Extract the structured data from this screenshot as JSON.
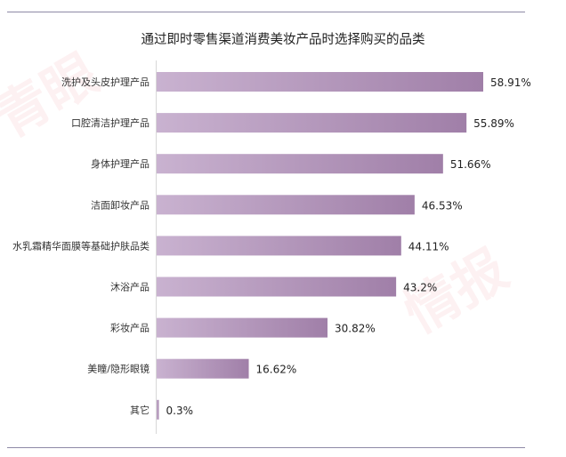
{
  "watermark": "青眼情报",
  "chart_data": {
    "type": "bar",
    "orientation": "horizontal",
    "title": "通过即时零售渠道消费美妆产品时选择购买的品类",
    "categories": [
      "洗护及头皮护理产品",
      "口腔清洁护理产品",
      "身体护理产品",
      "洁面卸妆产品",
      "水乳霜精华面膜等基础护肤品类",
      "沐浴产品",
      "彩妆产品",
      "美瞳/隐形眼镜",
      "其它"
    ],
    "values": [
      58.91,
      55.89,
      51.66,
      46.53,
      44.11,
      43.2,
      30.82,
      16.62,
      0.3
    ],
    "value_labels": [
      "58.91%",
      "55.89%",
      "51.66%",
      "46.53%",
      "44.11%",
      "43.2%",
      "30.82%",
      "16.62%",
      "0.3%"
    ],
    "unit": "%",
    "xlabel": "",
    "ylabel": "",
    "xlim": [
      0,
      65
    ],
    "grid": false,
    "colors": {
      "bar_start": "#c9b2d0",
      "bar_end": "#a07fa8",
      "axis": "#d8d8d8"
    }
  }
}
